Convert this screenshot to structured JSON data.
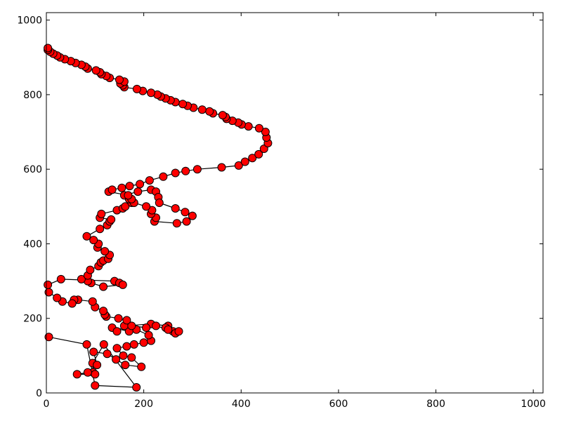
{
  "chart_data": {
    "type": "line",
    "title": "",
    "xlabel": "",
    "ylabel": "",
    "xlim": [
      0,
      1020
    ],
    "ylim": [
      0,
      1020
    ],
    "grid": false,
    "marker_color": "#ff0000",
    "line_color": "#000000",
    "x_ticks": [
      0,
      200,
      400,
      600,
      800,
      1000
    ],
    "y_ticks": [
      0,
      200,
      400,
      600,
      800,
      1000
    ],
    "x_tick_labels": [
      "0",
      "200",
      "400",
      "600",
      "800",
      "1000"
    ],
    "y_tick_labels": [
      "0",
      "200",
      "400",
      "600",
      "800",
      "1000"
    ],
    "series": [
      {
        "x": [
          5,
          83,
          100,
          185,
          118,
          95,
          96,
          100,
          63,
          85,
          104,
          97,
          125,
          143,
          162,
          195,
          175,
          158,
          145,
          165,
          180,
          200,
          215,
          210,
          185,
          170,
          135,
          145,
          160,
          215,
          250,
          245,
          260,
          265,
          272,
          250,
          225,
          205,
          175,
          165,
          148,
          123,
          120,
          117,
          100,
          95,
          65,
          57,
          53,
          33,
          22,
          5,
          3,
          30,
          140,
          150,
          157,
          117,
          92,
          85,
          72,
          85,
          90,
          107,
          112,
          117,
          127,
          130,
          120,
          105,
          107,
          97,
          83,
          110,
          125,
          130,
          133,
          110,
          113,
          145,
          157,
          162,
          175,
          170,
          160,
          188,
          215,
          225,
          230,
          232,
          265,
          285,
          300,
          288,
          268,
          222,
          225,
          215,
          217,
          205,
          180,
          175,
          168,
          128,
          135,
          155,
          171,
          192,
          212,
          240,
          265,
          286,
          310,
          360,
          395,
          408,
          423,
          436,
          447,
          455,
          452,
          450,
          437,
          415,
          401,
          394,
          382,
          370,
          368,
          362,
          342,
          335,
          320,
          302,
          290,
          280,
          265,
          255,
          245,
          235,
          228,
          215,
          198,
          186,
          160,
          157,
          152,
          160,
          150,
          130,
          123,
          113,
          110,
          102,
          85,
          80,
          72,
          60,
          50,
          38,
          28,
          22,
          14,
          8,
          3,
          3
        ],
        "y": [
          150,
          130,
          20,
          15,
          130,
          80,
          55,
          50,
          50,
          55,
          75,
          110,
          105,
          90,
          75,
          70,
          95,
          100,
          120,
          125,
          130,
          135,
          140,
          155,
          170,
          165,
          175,
          165,
          180,
          185,
          180,
          175,
          165,
          160,
          165,
          170,
          180,
          175,
          180,
          195,
          200,
          205,
          210,
          220,
          230,
          245,
          250,
          250,
          240,
          245,
          255,
          270,
          290,
          305,
          300,
          295,
          290,
          285,
          295,
          300,
          305,
          315,
          330,
          340,
          350,
          355,
          360,
          370,
          380,
          390,
          400,
          410,
          420,
          440,
          450,
          460,
          465,
          470,
          480,
          490,
          495,
          500,
          510,
          520,
          530,
          540,
          545,
          540,
          525,
          510,
          495,
          485,
          475,
          460,
          455,
          460,
          470,
          480,
          490,
          500,
          510,
          520,
          530,
          540,
          545,
          550,
          555,
          560,
          570,
          580,
          590,
          595,
          600,
          605,
          610,
          620,
          630,
          640,
          655,
          670,
          685,
          700,
          710,
          715,
          720,
          725,
          730,
          735,
          740,
          745,
          750,
          755,
          760,
          765,
          770,
          775,
          780,
          785,
          790,
          795,
          800,
          805,
          810,
          815,
          820,
          825,
          830,
          835,
          840,
          845,
          850,
          855,
          860,
          865,
          870,
          875,
          880,
          885,
          890,
          895,
          900,
          905,
          910,
          915,
          920,
          925
        ]
      }
    ],
    "tour_x": [
      5,
      83,
      100,
      185,
      118,
      95,
      96,
      100,
      63
    ],
    "tour_y": [
      150,
      130,
      20,
      15,
      130,
      80,
      55,
      50,
      50
    ]
  }
}
